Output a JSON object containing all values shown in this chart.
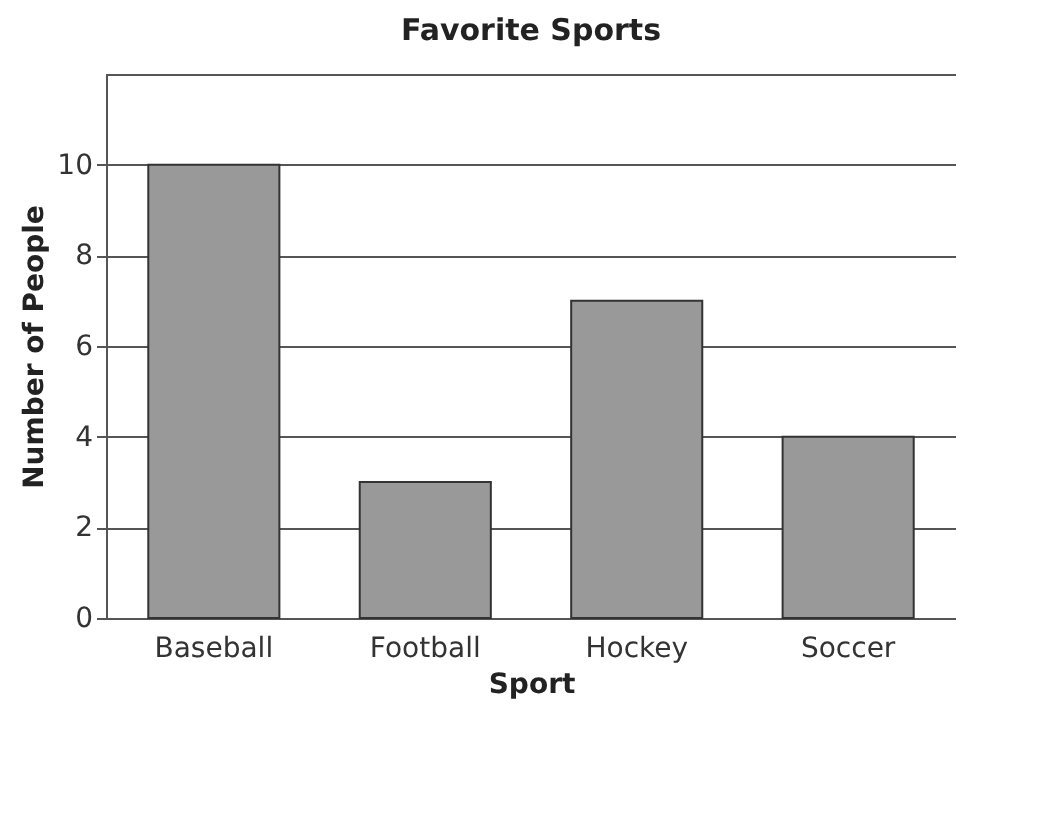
{
  "chart_data": {
    "type": "bar",
    "title": "Favorite Sports",
    "xlabel": "Sport",
    "ylabel": "Number of People",
    "categories": [
      "Baseball",
      "Football",
      "Hockey",
      "Soccer"
    ],
    "values": [
      10,
      3,
      7,
      4
    ],
    "color": "#999999",
    "ylim": [
      0,
      12
    ],
    "yticks": [
      0,
      2,
      4,
      6,
      8,
      10
    ],
    "grid": "y"
  }
}
